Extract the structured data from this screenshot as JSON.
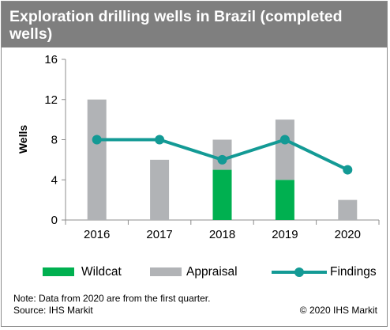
{
  "title": "Exploration drilling wells in Brazil (completed wells)",
  "chart_data": {
    "type": "bar",
    "title": "Exploration drilling wells in Brazil (completed wells)",
    "xlabel": "",
    "ylabel": "Wells",
    "ylim": [
      0,
      16
    ],
    "yticks": [
      "0",
      "4",
      "8",
      "12",
      "16"
    ],
    "categories": [
      "2016",
      "2017",
      "2018",
      "2019",
      "2020"
    ],
    "series": [
      {
        "name": "Wildcat",
        "type": "bar",
        "stacked": true,
        "color": "#00b050",
        "values": [
          0,
          0,
          5,
          4,
          0
        ]
      },
      {
        "name": "Appraisal",
        "type": "bar",
        "stacked": true,
        "color": "#b1b3b6",
        "values": [
          12,
          6,
          3,
          6,
          2
        ]
      },
      {
        "name": "Findings",
        "type": "line",
        "color": "#139a95",
        "values": [
          8,
          8,
          6,
          8,
          5
        ]
      }
    ],
    "grid": false,
    "legend_position": "bottom"
  },
  "legend": [
    {
      "label": "Wildcat",
      "color": "#00b050",
      "kind": "bar"
    },
    {
      "label": "Appraisal",
      "color": "#b1b3b6",
      "kind": "bar"
    },
    {
      "label": "Findings",
      "color": "#139a95",
      "kind": "line"
    }
  ],
  "footer": {
    "note": "Note: Data from 2020 are from the first quarter.",
    "source": "Source: IHS Markit",
    "copyright": "© 2020 IHS Markit"
  }
}
